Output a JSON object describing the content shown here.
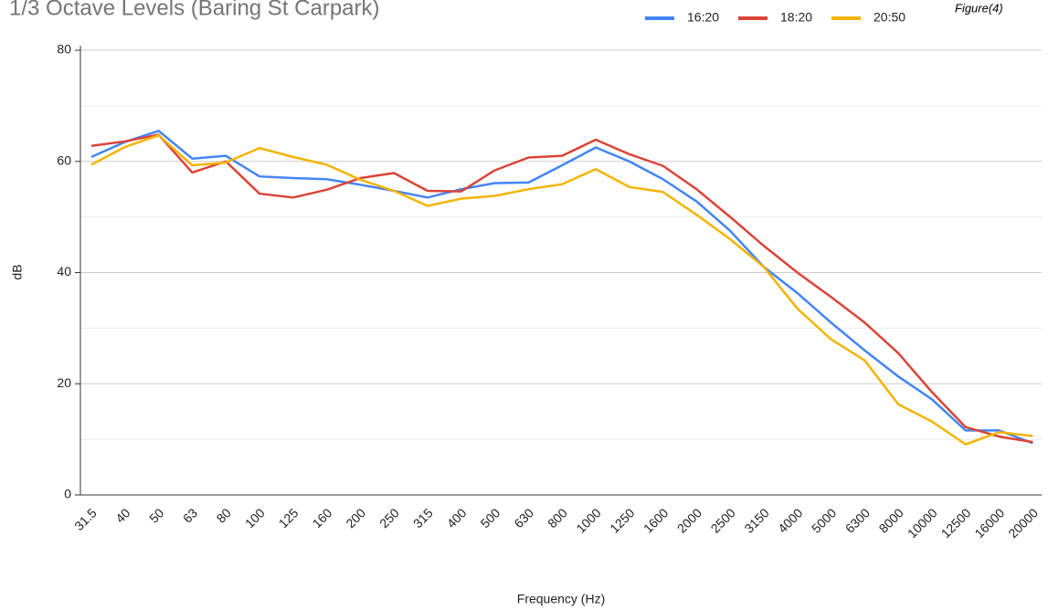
{
  "chart_data": {
    "type": "line",
    "title": "1/3 Octave Levels (Baring St Carpark)",
    "figure_label": "Figure(4)",
    "x_label": "Frequency (Hz)",
    "y_label": "dB",
    "categories": [
      "31.5",
      "40",
      "50",
      "63",
      "80",
      "100",
      "125",
      "160",
      "200",
      "250",
      "315",
      "400",
      "500",
      "630",
      "800",
      "1000",
      "1250",
      "1600",
      "2000",
      "2500",
      "3150",
      "4000",
      "5000",
      "6300",
      "8000",
      "10000",
      "12500",
      "16000",
      "20000"
    ],
    "series": [
      {
        "name": "16:20",
        "color": "#4285f4",
        "values": [
          60.8,
          63.5,
          65.5,
          60.5,
          61,
          57.3,
          57,
          56.8,
          55.8,
          54.7,
          53.5,
          55,
          56.1,
          56.2,
          59.3,
          62.5,
          60,
          56.8,
          52.8,
          47.5,
          41,
          36.3,
          31,
          26,
          21.3,
          17.2,
          11.6,
          11.6,
          9.3
        ]
      },
      {
        "name": "18:20",
        "color": "#db4437",
        "values": [
          62.8,
          63.6,
          64.8,
          58,
          60,
          54.2,
          53.5,
          54.9,
          57,
          57.9,
          54.7,
          54.6,
          58.4,
          60.7,
          61,
          63.9,
          61.3,
          59.2,
          55,
          50,
          44.8,
          40,
          35.6,
          31,
          25.5,
          18.5,
          12.2,
          10.5,
          9.5
        ]
      },
      {
        "name": "20:50",
        "color": "#f4b400",
        "values": [
          59.4,
          62.6,
          64.7,
          59.3,
          59.8,
          62.4,
          60.8,
          59.4,
          56.7,
          54.7,
          52,
          53.3,
          53.8,
          55,
          55.9,
          58.6,
          55.4,
          54.5,
          50.4,
          46,
          41,
          33.5,
          28,
          24.2,
          16.3,
          13.2,
          9.1,
          11.3,
          10.6
        ]
      }
    ],
    "ylim": [
      0,
      80
    ],
    "yticks": [
      0,
      20,
      40,
      60,
      80
    ],
    "minor_yticks": [
      10,
      30,
      50,
      70
    ],
    "grid": true
  }
}
